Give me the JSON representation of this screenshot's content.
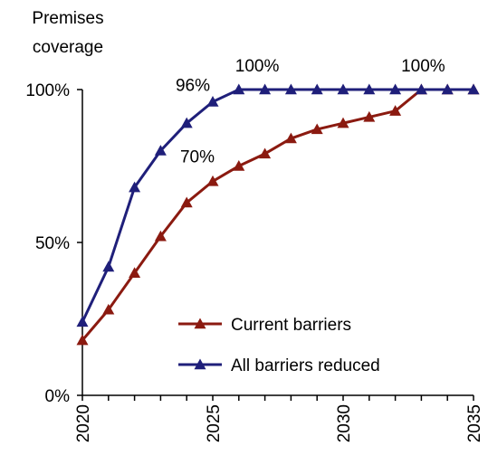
{
  "chart_data": {
    "type": "line",
    "title": "",
    "ylabel": [
      "Premises",
      "coverage"
    ],
    "xlabel": "",
    "xlim": [
      2020,
      2035
    ],
    "ylim": [
      0,
      100
    ],
    "y_ticks": [
      {
        "value": 0,
        "label": "0%"
      },
      {
        "value": 50,
        "label": "50%"
      },
      {
        "value": 100,
        "label": "100%"
      }
    ],
    "x_ticks": [
      {
        "value": 2020,
        "label": "2020"
      },
      {
        "value": 2025,
        "label": "2025"
      },
      {
        "value": 2030,
        "label": "2030"
      },
      {
        "value": 2035,
        "label": "2035"
      }
    ],
    "grid": false,
    "legend_position": "bottom-right",
    "x": [
      2020,
      2021,
      2022,
      2023,
      2024,
      2025,
      2026,
      2027,
      2028,
      2029,
      2030,
      2031,
      2032,
      2033,
      2034,
      2035
    ],
    "series": [
      {
        "name": "Current barriers",
        "color": "#8b1a10",
        "marker": "triangle",
        "values": [
          18,
          28,
          40,
          52,
          63,
          70,
          75,
          79,
          84,
          87,
          89,
          91,
          93,
          100,
          100,
          100
        ]
      },
      {
        "name": "All barriers reduced",
        "color": "#1f1f7a",
        "marker": "triangle",
        "values": [
          24,
          42,
          68,
          80,
          89,
          96,
          100,
          100,
          100,
          100,
          100,
          100,
          100,
          100,
          100,
          100
        ]
      }
    ],
    "annotations": [
      {
        "text": "96%",
        "series": 1,
        "x": 2025
      },
      {
        "text": "100%",
        "series": 1,
        "x": 2026
      },
      {
        "text": "70%",
        "series": 0,
        "x": 2025
      },
      {
        "text": "100%",
        "series": 0,
        "x": 2033
      }
    ]
  }
}
